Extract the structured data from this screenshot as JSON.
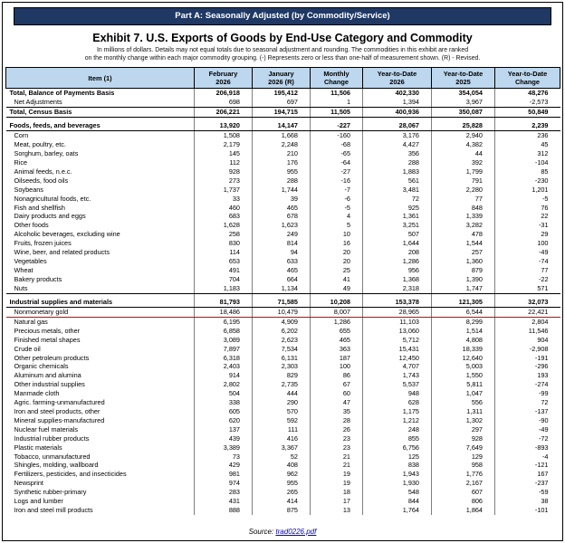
{
  "banner": "Part A: Seasonally Adjusted (by Commodity/Service)",
  "title": "Exhibit 7. U.S. Exports of Goods by End-Use Category and Commodity",
  "subtitle_line1": "In millions of dollars. Details may not equal totals due to seasonal adjustment and rounding. The commodities in this exhibit are ranked",
  "subtitle_line2": "on the monthly change within each major commodity grouping. (-) Represents zero or less than one-half of measurement shown. (R) - Revised.",
  "source": {
    "prefix": "Source: ",
    "link": "trad0226.pdf"
  },
  "table": {
    "columns": [
      "Item (1)",
      "February\n2026",
      "January\n2026 (R)",
      "Monthly\nChange",
      "Year-to-Date\n2026",
      "Year-to-Date\n2025",
      "Year-to-Date\nChange"
    ],
    "rows": [
      {
        "label": "Total, Balance of Payments Basis",
        "bold": true,
        "values": [
          "206,918",
          "195,412",
          "11,506",
          "402,330",
          "354,054",
          "48,276"
        ]
      },
      {
        "label": "Net Adjustments",
        "hline": true,
        "values": [
          "698",
          "697",
          "1",
          "1,394",
          "3,967",
          "-2,573"
        ]
      },
      {
        "label": "Total, Census Basis",
        "bold": true,
        "hline": true,
        "values": [
          "206,221",
          "194,715",
          "11,505",
          "400,936",
          "350,087",
          "50,849"
        ]
      },
      {
        "type": "spacer"
      },
      {
        "label": "Foods, feeds, and beverages",
        "bold": true,
        "hline": true,
        "values": [
          "13,920",
          "14,147",
          "-227",
          "28,067",
          "25,828",
          "2,239"
        ]
      },
      {
        "label": "Corn",
        "values": [
          "1,508",
          "1,668",
          "-160",
          "3,176",
          "2,940",
          "236"
        ]
      },
      {
        "label": "Meat, poultry, etc.",
        "values": [
          "2,179",
          "2,248",
          "-68",
          "4,427",
          "4,382",
          "45"
        ]
      },
      {
        "label": "Sorghum, barley, oats",
        "values": [
          "145",
          "210",
          "-65",
          "356",
          "44",
          "312"
        ]
      },
      {
        "label": "Rice",
        "values": [
          "112",
          "176",
          "-64",
          "288",
          "392",
          "-104"
        ]
      },
      {
        "label": "Animal feeds, n.e.c.",
        "values": [
          "928",
          "955",
          "-27",
          "1,883",
          "1,799",
          "85"
        ]
      },
      {
        "label": "Oilseeds, food oils",
        "values": [
          "273",
          "288",
          "-16",
          "561",
          "791",
          "-230"
        ]
      },
      {
        "label": "Soybeans",
        "values": [
          "1,737",
          "1,744",
          "-7",
          "3,481",
          "2,280",
          "1,201"
        ]
      },
      {
        "label": "Nonagricultural foods, etc.",
        "values": [
          "33",
          "39",
          "-6",
          "72",
          "77",
          "-5"
        ]
      },
      {
        "label": "Fish and shellfish",
        "values": [
          "460",
          "465",
          "-5",
          "925",
          "848",
          "76"
        ]
      },
      {
        "label": "Dairy products and eggs",
        "values": [
          "683",
          "678",
          "4",
          "1,361",
          "1,339",
          "22"
        ]
      },
      {
        "label": "Other foods",
        "values": [
          "1,628",
          "1,623",
          "5",
          "3,251",
          "3,282",
          "-31"
        ]
      },
      {
        "label": "Alcoholic beverages, excluding wine",
        "values": [
          "258",
          "249",
          "10",
          "507",
          "478",
          "29"
        ]
      },
      {
        "label": "Fruits, frozen juices",
        "values": [
          "830",
          "814",
          "16",
          "1,644",
          "1,544",
          "100"
        ]
      },
      {
        "label": "Wine, beer, and related products",
        "values": [
          "114",
          "94",
          "20",
          "208",
          "257",
          "-49"
        ]
      },
      {
        "label": "Vegetables",
        "values": [
          "653",
          "633",
          "20",
          "1,286",
          "1,360",
          "-74"
        ]
      },
      {
        "label": "Wheat",
        "values": [
          "491",
          "465",
          "25",
          "956",
          "879",
          "77"
        ]
      },
      {
        "label": "Bakery products",
        "values": [
          "704",
          "664",
          "41",
          "1,368",
          "1,390",
          "-22"
        ]
      },
      {
        "label": "Nuts",
        "hline": true,
        "values": [
          "1,183",
          "1,134",
          "49",
          "2,318",
          "1,747",
          "571"
        ]
      },
      {
        "type": "spacer"
      },
      {
        "label": "Industrial supplies and materials",
        "bold": true,
        "hline": true,
        "values": [
          "81,793",
          "71,585",
          "10,208",
          "153,378",
          "121,305",
          "32,073"
        ]
      },
      {
        "label": "Nonmonetary gold",
        "redline": true,
        "values": [
          "18,486",
          "10,479",
          "8,007",
          "28,965",
          "6,544",
          "22,421"
        ]
      },
      {
        "label": "Natural gas",
        "values": [
          "6,195",
          "4,909",
          "1,286",
          "11,103",
          "8,299",
          "2,804"
        ]
      },
      {
        "label": "Precious metals, other",
        "values": [
          "6,858",
          "6,202",
          "655",
          "13,060",
          "1,514",
          "11,546"
        ]
      },
      {
        "label": "Finished metal shapes",
        "values": [
          "3,089",
          "2,623",
          "465",
          "5,712",
          "4,808",
          "904"
        ]
      },
      {
        "label": "Crude oil",
        "values": [
          "7,897",
          "7,534",
          "363",
          "15,431",
          "18,339",
          "-2,908"
        ]
      },
      {
        "label": "Other petroleum products",
        "values": [
          "6,318",
          "6,131",
          "187",
          "12,450",
          "12,640",
          "-191"
        ]
      },
      {
        "label": "Organic chemicals",
        "values": [
          "2,403",
          "2,303",
          "100",
          "4,707",
          "5,003",
          "-296"
        ]
      },
      {
        "label": "Aluminum and alumina",
        "values": [
          "914",
          "829",
          "86",
          "1,743",
          "1,550",
          "193"
        ]
      },
      {
        "label": "Other industrial supplies",
        "values": [
          "2,802",
          "2,735",
          "67",
          "5,537",
          "5,811",
          "-274"
        ]
      },
      {
        "label": "Manmade cloth",
        "values": [
          "504",
          "444",
          "60",
          "948",
          "1,047",
          "-99"
        ]
      },
      {
        "label": "Agric. farming-unmanufactured",
        "values": [
          "338",
          "290",
          "47",
          "628",
          "556",
          "72"
        ]
      },
      {
        "label": "Iron and steel products, other",
        "values": [
          "605",
          "570",
          "35",
          "1,175",
          "1,311",
          "-137"
        ]
      },
      {
        "label": "Mineral supplies-manufactured",
        "values": [
          "620",
          "592",
          "28",
          "1,212",
          "1,302",
          "-90"
        ]
      },
      {
        "label": "Nuclear fuel materials",
        "values": [
          "137",
          "111",
          "26",
          "248",
          "297",
          "-49"
        ]
      },
      {
        "label": "Industrial rubber products",
        "values": [
          "439",
          "416",
          "23",
          "855",
          "928",
          "-72"
        ]
      },
      {
        "label": "Plastic materials",
        "values": [
          "3,389",
          "3,367",
          "23",
          "6,756",
          "7,649",
          "-893"
        ]
      },
      {
        "label": "Tobacco, unmanufactured",
        "values": [
          "73",
          "52",
          "21",
          "125",
          "129",
          "-4"
        ]
      },
      {
        "label": "Shingles, molding, wallboard",
        "values": [
          "429",
          "408",
          "21",
          "838",
          "958",
          "-121"
        ]
      },
      {
        "label": "Fertilizers, pesticides, and insecticides",
        "values": [
          "981",
          "962",
          "19",
          "1,943",
          "1,776",
          "167"
        ]
      },
      {
        "label": "Newsprint",
        "values": [
          "974",
          "955",
          "19",
          "1,930",
          "2,167",
          "-237"
        ]
      },
      {
        "label": "Synthetic rubber-primary",
        "values": [
          "283",
          "265",
          "18",
          "548",
          "607",
          "-59"
        ]
      },
      {
        "label": "Logs and lumber",
        "values": [
          "431",
          "414",
          "17",
          "844",
          "806",
          "38"
        ]
      },
      {
        "label": "Iron and steel mill products",
        "values": [
          "888",
          "875",
          "13",
          "1,764",
          "1,864",
          "-101"
        ]
      }
    ]
  }
}
